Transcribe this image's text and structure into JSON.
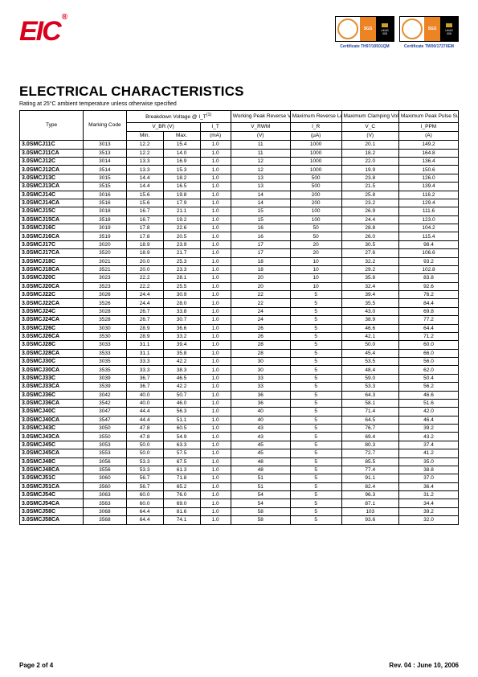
{
  "brand": {
    "logoText": "EIC",
    "logoTrademark": "®"
  },
  "certificates": [
    {
      "sgs": "SGS",
      "ukas": "UKAS",
      "ukasSub": "QUALITY MANAGEMENT",
      "num": "005",
      "caption": "Certificate  TH97/10501QM"
    },
    {
      "sgs": "SGS",
      "ukas": "UKAS",
      "ukasSub": "ENVIRONMENTAL MANAGEMENT",
      "num": "006",
      "caption": "Certificate  TW00/17270EM"
    }
  ],
  "title": "ELECTRICAL CHARACTERISTICS",
  "subtitle": "Rating at 25°C ambient temperature unless otherwise specified",
  "headers": {
    "type": "Type",
    "marking": "Marking Code",
    "breakdown": "Breakdown Voltage @ Ι_T",
    "breakdownNote": "(1)",
    "vbr": "V_BR (V)",
    "min": "Min.",
    "max": "Max.",
    "it": "I_T",
    "itUnit": "(mA)",
    "vrwmTitle": "Working Peak Reverse Voltage",
    "vrwm": "V_RWM",
    "vrwmUnit": "(V)",
    "irTitle": "Maximum Reverse Leakage @ V_RWM",
    "ir": "I_R",
    "irUnit": "(µA)",
    "vcTitle": "Maximum Clamping Voltage @ I_PPM",
    "vc": "V_C",
    "vcUnit": "(V)",
    "ippmTitle": "Maximum Peak Pulse Surge Current",
    "ippm": "I_PPM",
    "ippmUnit": "(A)"
  },
  "rows": [
    [
      "3.0SMCJ11C",
      "3013",
      "12.2",
      "15.4",
      "1.0",
      "11",
      "1000",
      "20.1",
      "149.2"
    ],
    [
      "3.0SMCJ11CA",
      "3513",
      "12.2",
      "14.0",
      "1.0",
      "11",
      "1000",
      "18.2",
      "164.8"
    ],
    [
      "3.0SMCJ12C",
      "3014",
      "13.3",
      "16.9",
      "1.0",
      "12",
      "1000",
      "22.0",
      "136.4"
    ],
    [
      "3.0SMCJ12CA",
      "3514",
      "13.3",
      "15.3",
      "1.0",
      "12",
      "1000",
      "19.9",
      "150.6"
    ],
    [
      "3.0SMCJ13C",
      "3015",
      "14.4",
      "18.2",
      "1.0",
      "13",
      "500",
      "23.8",
      "126.0"
    ],
    [
      "3.0SMCJ13CA",
      "3515",
      "14.4",
      "16.5",
      "1.0",
      "13",
      "500",
      "21.5",
      "139.4"
    ],
    [
      "3.0SMCJ14C",
      "3016",
      "15.6",
      "19.8",
      "1.0",
      "14",
      "200",
      "25.8",
      "116.2"
    ],
    [
      "3.0SMCJ14CA",
      "3516",
      "15.6",
      "17.9",
      "1.0",
      "14",
      "200",
      "23.2",
      "129.4"
    ],
    [
      "3.0SMCJ15C",
      "3018",
      "16.7",
      "21.1",
      "1.0",
      "15",
      "100",
      "26.9",
      "111.6"
    ],
    [
      "3.0SMCJ15CA",
      "3518",
      "16.7",
      "19.2",
      "1.0",
      "15",
      "100",
      "24.4",
      "123.0"
    ],
    [
      "3.0SMCJ16C",
      "3019",
      "17.8",
      "22.6",
      "1.0",
      "16",
      "50",
      "28.8",
      "104.2"
    ],
    [
      "3.0SMCJ16CA",
      "3519",
      "17.8",
      "20.5",
      "1.0",
      "16",
      "50",
      "26.0",
      "115.4"
    ],
    [
      "3.0SMCJ17C",
      "3020",
      "18.9",
      "23.9",
      "1.0",
      "17",
      "20",
      "30.5",
      "98.4"
    ],
    [
      "3.0SMCJ17CA",
      "3520",
      "18.9",
      "21.7",
      "1.0",
      "17",
      "20",
      "27.6",
      "106.6"
    ],
    [
      "3.0SMCJ18C",
      "3021",
      "20.0",
      "25.3",
      "1.0",
      "18",
      "10",
      "32.2",
      "93.2"
    ],
    [
      "3.0SMCJ18CA",
      "3521",
      "20.0",
      "23.3",
      "1.0",
      "18",
      "10",
      "29.2",
      "102.8"
    ],
    [
      "3.0SMCJ20C",
      "3023",
      "22.2",
      "28.1",
      "1.0",
      "20",
      "10",
      "35.8",
      "83.8"
    ],
    [
      "3.0SMCJ20CA",
      "3523",
      "22.2",
      "25.5",
      "1.0",
      "20",
      "10",
      "32.4",
      "92.6"
    ],
    [
      "3.0SMCJ22C",
      "3026",
      "24.4",
      "30.9",
      "1.0",
      "22",
      "5",
      "39.4",
      "76.2"
    ],
    [
      "3.0SMCJ22CA",
      "3526",
      "24.4",
      "28.0",
      "1.0",
      "22",
      "5",
      "35.5",
      "84.4"
    ],
    [
      "3.0SMCJ24C",
      "3028",
      "26.7",
      "33.8",
      "1.0",
      "24",
      "5",
      "43.0",
      "69.8"
    ],
    [
      "3.0SMCJ24CA",
      "3528",
      "26.7",
      "30.7",
      "1.0",
      "24",
      "5",
      "38.9",
      "77.2"
    ],
    [
      "3.0SMCJ26C",
      "3030",
      "28.9",
      "36.6",
      "1.0",
      "26",
      "5",
      "46.6",
      "64.4"
    ],
    [
      "3.0SMCJ26CA",
      "3530",
      "28.9",
      "33.2",
      "1.0",
      "26",
      "5",
      "42.1",
      "71.2"
    ],
    [
      "3.0SMCJ28C",
      "3033",
      "31.1",
      "39.4",
      "1.0",
      "28",
      "5",
      "50.0",
      "60.0"
    ],
    [
      "3.0SMCJ28CA",
      "3533",
      "31.1",
      "35.8",
      "1.0",
      "28",
      "5",
      "45.4",
      "66.0"
    ],
    [
      "3.0SMCJ30C",
      "3035",
      "33.3",
      "42.2",
      "1.0",
      "30",
      "5",
      "53.5",
      "56.0"
    ],
    [
      "3.0SMCJ30CA",
      "3535",
      "33.3",
      "38.3",
      "1.0",
      "30",
      "5",
      "48.4",
      "62.0"
    ],
    [
      "3.0SMCJ33C",
      "3039",
      "36.7",
      "46.5",
      "1.0",
      "33",
      "5",
      "59.0",
      "50.4"
    ],
    [
      "3.0SMCJ33CA",
      "3539",
      "36.7",
      "42.2",
      "1.0",
      "33",
      "5",
      "53.3",
      "56.2"
    ],
    [
      "3.0SMCJ36C",
      "3042",
      "40.0",
      "50.7",
      "1.0",
      "36",
      "5",
      "64.3",
      "46.6"
    ],
    [
      "3.0SMCJ36CA",
      "3542",
      "40.0",
      "46.0",
      "1.0",
      "36",
      "5",
      "58.1",
      "51.6"
    ],
    [
      "3.0SMCJ40C",
      "3047",
      "44.4",
      "56.3",
      "1.0",
      "40",
      "5",
      "71.4",
      "42.0"
    ],
    [
      "3.0SMCJ40CA",
      "3547",
      "44.4",
      "51.1",
      "1.0",
      "40",
      "5",
      "64.5",
      "46.4"
    ],
    [
      "3.0SMCJ43C",
      "3050",
      "47.8",
      "60.5",
      "1.0",
      "43",
      "5",
      "76.7",
      "39.2"
    ],
    [
      "3.0SMCJ43CA",
      "3550",
      "47.8",
      "54.9",
      "1.0",
      "43",
      "5",
      "69.4",
      "43.2"
    ],
    [
      "3.0SMCJ45C",
      "3053",
      "50.0",
      "63.3",
      "1.0",
      "45",
      "5",
      "80.3",
      "37.4"
    ],
    [
      "3.0SMCJ45CA",
      "3553",
      "50.0",
      "57.5",
      "1.0",
      "45",
      "5",
      "72.7",
      "41.2"
    ],
    [
      "3.0SMCJ48C",
      "3056",
      "53.3",
      "67.5",
      "1.0",
      "48",
      "5",
      "85.5",
      "35.0"
    ],
    [
      "3.0SMCJ48CA",
      "3556",
      "53.3",
      "61.3",
      "1.0",
      "48",
      "5",
      "77.4",
      "38.8"
    ],
    [
      "3.0SMCJ51C",
      "3060",
      "56.7",
      "71.8",
      "1.0",
      "51",
      "5",
      "91.1",
      "37.0"
    ],
    [
      "3.0SMCJ51CA",
      "3560",
      "56.7",
      "65.2",
      "1.0",
      "51",
      "5",
      "82.4",
      "36.4"
    ],
    [
      "3.0SMCJ54C",
      "3063",
      "60.0",
      "76.0",
      "1.0",
      "54",
      "5",
      "96.3",
      "31.2"
    ],
    [
      "3.0SMCJ54CA",
      "3563",
      "60.0",
      "69.0",
      "1.0",
      "54",
      "5",
      "87.1",
      "34.4"
    ],
    [
      "3.0SMCJ58C",
      "3068",
      "64.4",
      "81.6",
      "1.0",
      "58",
      "5",
      "103",
      "39.2"
    ],
    [
      "3.0SMCJ58CA",
      "3568",
      "64.4",
      "74.1",
      "1.0",
      "58",
      "5",
      "93.6",
      "32.0"
    ]
  ],
  "footer": {
    "left": "Page 2 of 4",
    "right": "Rev. 04 : June 10, 2006"
  },
  "style": {
    "logoColor": "#d9001b",
    "certLinkColor": "#1b3f9c",
    "borderColor": "#000000",
    "bg": "#ffffff",
    "bodyFontSize": 6.5,
    "titleFontSize": 17
  }
}
